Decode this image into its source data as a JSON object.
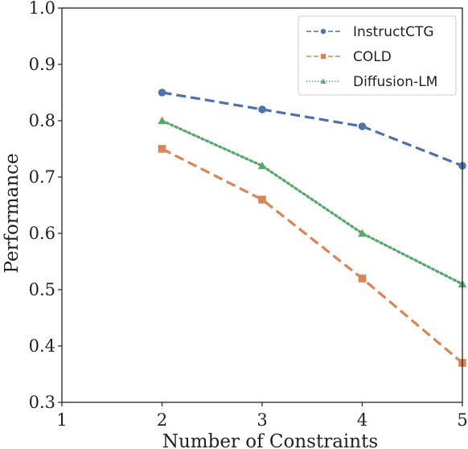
{
  "chart_data": {
    "type": "line",
    "title": "",
    "xlabel": "Number of Constraints",
    "ylabel": "Performance",
    "x": [
      2,
      3,
      4,
      5
    ],
    "xlim": [
      1,
      5
    ],
    "ylim": [
      0.3,
      1.0
    ],
    "xticks": [
      "1",
      "2",
      "3",
      "4",
      "5"
    ],
    "yticks": [
      "0.3",
      "0.4",
      "0.5",
      "0.6",
      "0.7",
      "0.8",
      "0.9",
      "1.0"
    ],
    "grid": false,
    "legend_position": "top-right",
    "series": [
      {
        "name": "InstructCTG",
        "values": [
          0.85,
          0.82,
          0.79,
          0.72
        ],
        "color": "#4c72b0",
        "line_style": "dashed",
        "marker": "circle"
      },
      {
        "name": "COLD",
        "values": [
          0.75,
          0.66,
          0.52,
          0.37
        ],
        "color": "#dd8452",
        "line_style": "dashed",
        "marker": "square"
      },
      {
        "name": "Diffusion-LM",
        "values": [
          0.8,
          0.72,
          0.6,
          0.51
        ],
        "color": "#55a868",
        "line_style": "dotted",
        "marker": "triangle"
      }
    ]
  }
}
